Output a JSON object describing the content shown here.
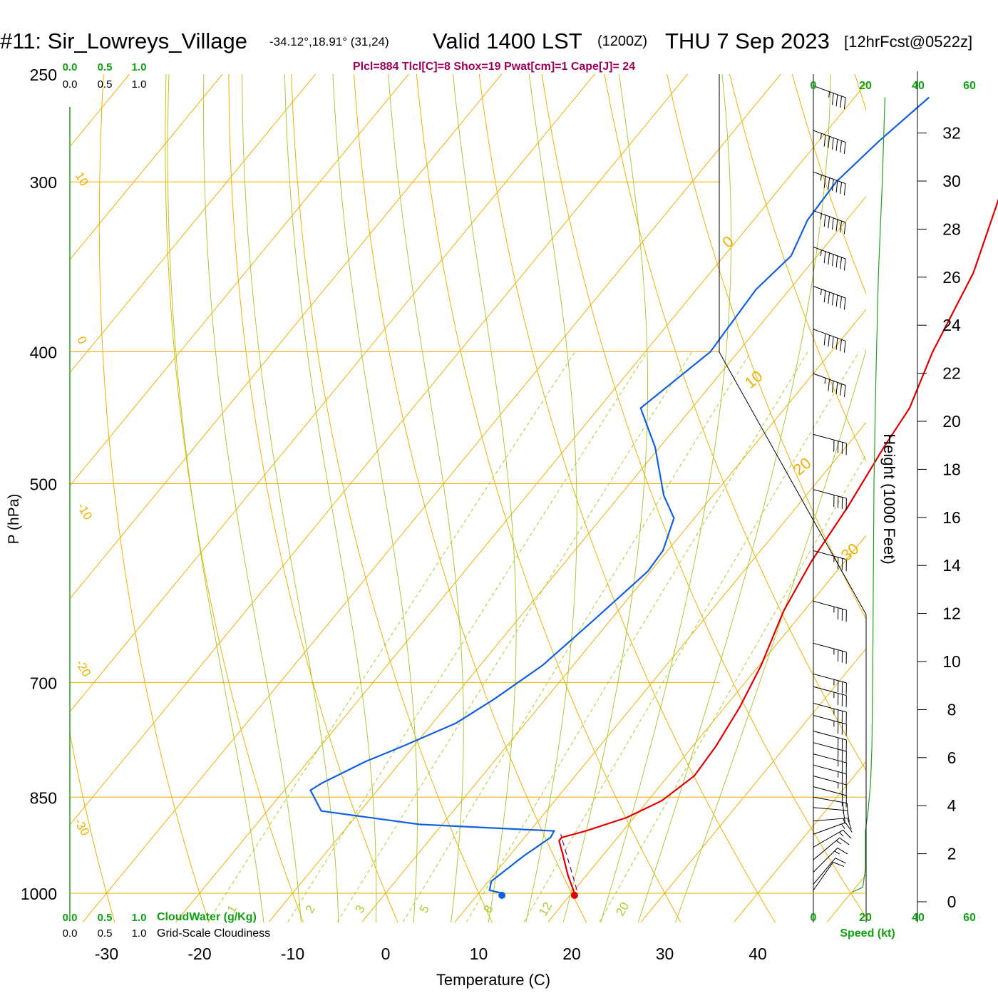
{
  "header": {
    "station": "#11: Sir_Lowreys_Village",
    "coords": "-34.12°,18.91° (31,24)",
    "valid": "Valid 1400 LST",
    "zulu": "(1200Z)",
    "date": "THU 7 Sep 2023",
    "forecast": "[12hrFcst@0522z]",
    "indices": "Plcl=884 Tlcl[C]=8 Shox=19 Pwat[cm]=1 Cape[J]= 24"
  },
  "scales": {
    "cloud_top_green": [
      "0.0",
      "0.5",
      "1.0"
    ],
    "cloud_top_black": [
      "0.0",
      "0.5",
      "1.0"
    ],
    "cloud_bottom_green": [
      "0.0",
      "0.5",
      "1.0"
    ],
    "cloud_bottom_black": [
      "0.0",
      "0.5",
      "1.0"
    ],
    "cloudwater_label": "CloudWater (g/Kg)",
    "cloudiness_label": "Grid-Scale Cloudiness",
    "speed_top": [
      "0",
      "20",
      "40",
      "60"
    ],
    "speed_bottom": [
      "0",
      "20",
      "40",
      "60"
    ],
    "speed_label": "Speed (kt)"
  },
  "colors": {
    "isotherm": "#f0b000",
    "dry_adiabat": "#f0b000",
    "moist_adiabat": "#a8cc30",
    "mixing_ratio": "#a8cc30",
    "temperature": "#e00000",
    "dewpoint": "#1060e0",
    "parcel": "#800080",
    "speed": "#20a020",
    "title_index": "#a0005a",
    "green_text": "#10a010"
  },
  "chart_data": {
    "type": "line",
    "xlabel": "Temperature (C)",
    "ylabel": "P (hPa)",
    "y2label": "Height (1000 Feet)",
    "x_ticks": [
      -30,
      -20,
      -10,
      0,
      10,
      20,
      30,
      40
    ],
    "p_ticks": [
      250,
      300,
      400,
      500,
      700,
      850,
      1000
    ],
    "height_ticks": [
      0,
      2,
      4,
      6,
      8,
      10,
      12,
      14,
      16,
      18,
      20,
      22,
      24,
      26,
      28,
      30,
      32
    ],
    "xlim": [
      -34,
      36
    ],
    "ylim": [
      1050,
      250
    ],
    "dry_adiabat_labels": [
      "10",
      "0",
      "-10",
      "-20",
      "-30"
    ],
    "moist_adiabat_labels": [
      "0",
      "10",
      "20",
      "30"
    ],
    "mixing_ratio_labels": [
      "1",
      "2",
      "3",
      "5",
      "8",
      "12",
      "20"
    ],
    "series": [
      {
        "name": "Temperature",
        "points": [
          [
            20.3,
            1000
          ],
          [
            18,
            970
          ],
          [
            15.5,
            935
          ],
          [
            14,
            915
          ],
          [
            14,
            910
          ],
          [
            16,
            900
          ],
          [
            19.2,
            880
          ],
          [
            21.5,
            855
          ],
          [
            22.8,
            820
          ],
          [
            22.5,
            780
          ],
          [
            21.6,
            730
          ],
          [
            20.2,
            680
          ],
          [
            17.8,
            620
          ],
          [
            16.4,
            570
          ],
          [
            15.5,
            520
          ],
          [
            14.1,
            470
          ],
          [
            13.4,
            440
          ],
          [
            10.9,
            400
          ],
          [
            8.3,
            350
          ],
          [
            3.6,
            300
          ],
          [
            -1.0,
            260
          ]
        ]
      },
      {
        "name": "Dewpoint",
        "points": [
          [
            12.5,
            1000
          ],
          [
            10.9,
            995
          ],
          [
            10.3,
            980
          ],
          [
            11.5,
            940
          ],
          [
            12.8,
            910
          ],
          [
            12.6,
            900
          ],
          [
            -2.5,
            890
          ],
          [
            -14.2,
            870
          ],
          [
            -17.2,
            840
          ],
          [
            -16.6,
            830
          ],
          [
            -13.8,
            800
          ],
          [
            -11.2,
            780
          ],
          [
            -7.5,
            750
          ],
          [
            -5.5,
            720
          ],
          [
            -3.3,
            680
          ],
          [
            -1.8,
            630
          ],
          [
            -0.3,
            580
          ],
          [
            -0.5,
            560
          ],
          [
            -2.2,
            530
          ],
          [
            -5.3,
            510
          ],
          [
            -10.5,
            470
          ],
          [
            -15.5,
            440
          ],
          [
            -13.0,
            400
          ],
          [
            -13.6,
            360
          ],
          [
            -12.8,
            340
          ],
          [
            -14.2,
            320
          ],
          [
            -14.5,
            300
          ],
          [
            -13.5,
            280
          ],
          [
            -12.0,
            260
          ]
        ]
      },
      {
        "name": "Parcel",
        "points": [
          [
            20.3,
            995
          ],
          [
            13.6,
            905
          ]
        ]
      }
    ],
    "surface_markers": {
      "temperature": 20.3,
      "dewpoint": 12.5
    },
    "winds": [
      {
        "p": 255,
        "spd": 45,
        "dir": 290
      },
      {
        "p": 275,
        "spd": 65,
        "dir": 290
      },
      {
        "p": 295,
        "spd": 65,
        "dir": 290
      },
      {
        "p": 315,
        "spd": 65,
        "dir": 290
      },
      {
        "p": 335,
        "spd": 65,
        "dir": 290
      },
      {
        "p": 358,
        "spd": 65,
        "dir": 290
      },
      {
        "p": 385,
        "spd": 60,
        "dir": 290
      },
      {
        "p": 415,
        "spd": 55,
        "dir": 290
      },
      {
        "p": 460,
        "spd": 40,
        "dir": 285
      },
      {
        "p": 505,
        "spd": 40,
        "dir": 285
      },
      {
        "p": 560,
        "spd": 35,
        "dir": 285
      },
      {
        "p": 610,
        "spd": 35,
        "dir": 285
      },
      {
        "p": 655,
        "spd": 35,
        "dir": 285
      },
      {
        "p": 690,
        "spd": 35,
        "dir": 285
      },
      {
        "p": 705,
        "spd": 35,
        "dir": 285
      },
      {
        "p": 725,
        "spd": 35,
        "dir": 285
      },
      {
        "p": 740,
        "spd": 35,
        "dir": 285
      },
      {
        "p": 760,
        "spd": 30,
        "dir": 285
      },
      {
        "p": 775,
        "spd": 30,
        "dir": 285
      },
      {
        "p": 790,
        "spd": 25,
        "dir": 285
      },
      {
        "p": 805,
        "spd": 25,
        "dir": 285
      },
      {
        "p": 820,
        "spd": 25,
        "dir": 285
      },
      {
        "p": 835,
        "spd": 20,
        "dir": 285
      },
      {
        "p": 850,
        "spd": 20,
        "dir": 280
      },
      {
        "p": 865,
        "spd": 20,
        "dir": 275
      },
      {
        "p": 885,
        "spd": 15,
        "dir": 265
      },
      {
        "p": 905,
        "spd": 15,
        "dir": 250
      },
      {
        "p": 925,
        "spd": 15,
        "dir": 240
      },
      {
        "p": 945,
        "spd": 15,
        "dir": 230
      },
      {
        "p": 965,
        "spd": 15,
        "dir": 225
      },
      {
        "p": 985,
        "spd": 10,
        "dir": 220
      },
      {
        "p": 995,
        "spd": 10,
        "dir": 215
      }
    ],
    "speed_profile": [
      [
        15,
        998
      ],
      [
        19,
        990
      ],
      [
        20,
        960
      ],
      [
        20,
        900
      ],
      [
        21,
        870
      ],
      [
        22,
        830
      ],
      [
        22.5,
        780
      ],
      [
        22.8,
        700
      ],
      [
        23,
        600
      ],
      [
        23.3,
        500
      ],
      [
        24,
        420
      ],
      [
        25,
        350
      ],
      [
        26.5,
        300
      ],
      [
        27.5,
        260
      ]
    ]
  }
}
